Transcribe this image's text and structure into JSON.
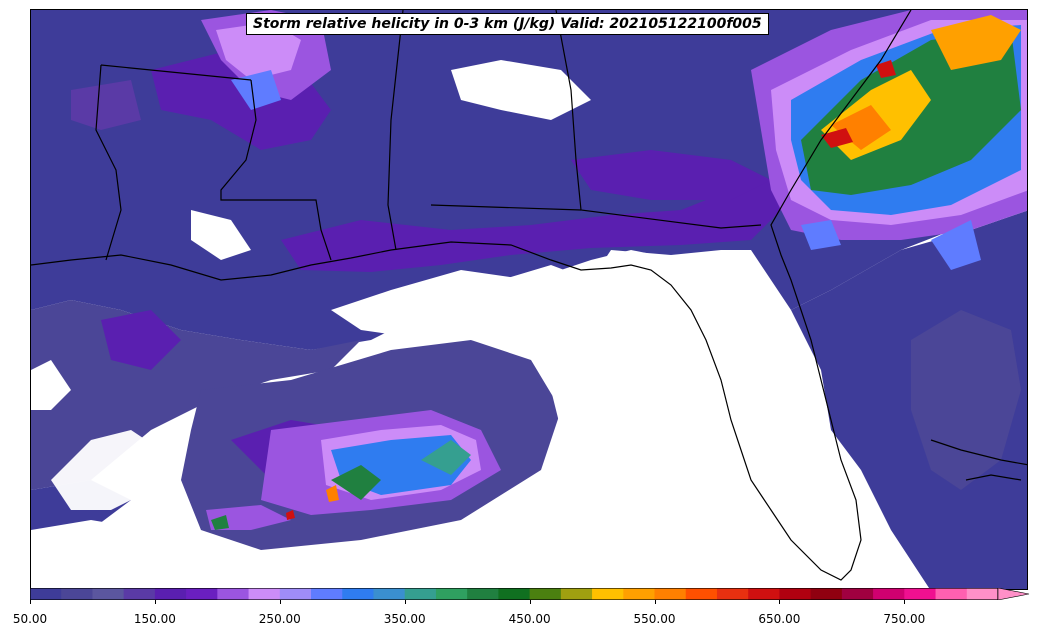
{
  "title": "Storm relative helicity in 0-3 km (J/kg) Valid: 202105122100f005",
  "colorbar": {
    "ticks": [
      "50.00",
      "150.00",
      "250.00",
      "350.00",
      "450.00",
      "550.00",
      "650.00",
      "750.00"
    ],
    "min": 50,
    "max": 850,
    "step": 25,
    "extend": "max",
    "colors": [
      "#3e3c99",
      "#4b4697",
      "#5b569f",
      "#5a3aa6",
      "#5a1fb0",
      "#6a1fc0",
      "#9b55e0",
      "#cc8cf8",
      "#9f8cf8",
      "#5f7cff",
      "#2f7cf0",
      "#3a8fd0",
      "#359f90",
      "#2fa060",
      "#208040",
      "#107020",
      "#4b8010",
      "#a0a010",
      "#ffc000",
      "#ffa000",
      "#ff8000",
      "#ff5000",
      "#e83010",
      "#d01010",
      "#b00010",
      "#900010",
      "#a00040",
      "#d00070",
      "#f01090",
      "#ff60b0",
      "#ff90c8"
    ]
  },
  "map_layers": {
    "background": "#ffffff",
    "low_shade": "#3e3c99",
    "mid_shade": "#4b4697",
    "purple_shade": "#5a1fb0",
    "violet_shade": "#9b55e0",
    "light_violet": "#cc8cf8",
    "blue_shade": "#2f7cf0",
    "green_shade": "#208040",
    "orange_shade": "#ff8000",
    "red_shade": "#d01010",
    "coast_color": "#000000"
  }
}
